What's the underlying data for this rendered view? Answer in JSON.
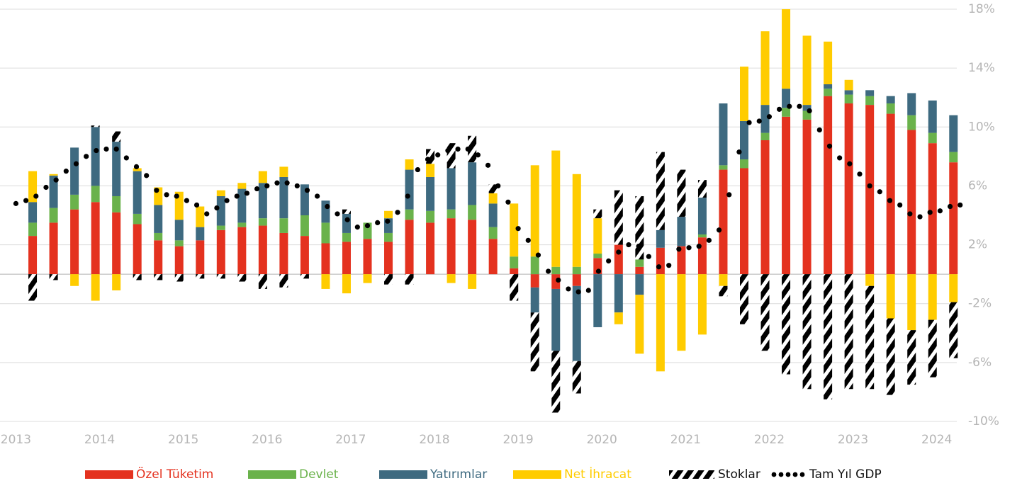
{
  "chart_data": {
    "type": "bar",
    "stacked": true,
    "xlim": [
      2012.81,
      2024.24
    ],
    "xticks": [
      2013,
      2014,
      2015,
      2016,
      2017,
      2018,
      2019,
      2020,
      2021,
      2022,
      2023,
      2024
    ],
    "ylim": [
      -10,
      18
    ],
    "yticks": [
      {
        "value": -10,
        "label": "-10%"
      },
      {
        "value": -6,
        "label": "-6%"
      },
      {
        "value": -2,
        "label": "-2%"
      },
      {
        "value": 2,
        "label": "2%"
      },
      {
        "value": 6,
        "label": "6%"
      },
      {
        "value": 10,
        "label": "10%"
      },
      {
        "value": 14,
        "label": "14%"
      },
      {
        "value": 18,
        "label": "18%"
      }
    ],
    "grid": true,
    "legend": "bottom",
    "x": [
      2013.2,
      2013.45,
      2013.7,
      2013.95,
      2014.2,
      2014.45,
      2014.7,
      2014.95,
      2015.2,
      2015.45,
      2015.7,
      2015.95,
      2016.2,
      2016.45,
      2016.7,
      2016.95,
      2017.2,
      2017.45,
      2017.7,
      2017.95,
      2018.2,
      2018.45,
      2018.7,
      2018.95,
      2019.2,
      2019.45,
      2019.7,
      2019.95,
      2020.2,
      2020.45,
      2020.7,
      2020.95,
      2021.2,
      2021.45,
      2021.7,
      2021.95,
      2022.2,
      2022.45,
      2022.7,
      2022.95,
      2023.2,
      2023.45,
      2023.7,
      2023.95,
      2024.2
    ],
    "series": [
      {
        "name": "Özel Tüketim",
        "color": "#e4321f",
        "values": [
          2.6,
          3.5,
          4.4,
          4.9,
          4.2,
          3.4,
          2.3,
          1.9,
          2.3,
          3.0,
          3.2,
          3.3,
          2.8,
          2.6,
          2.1,
          2.2,
          2.4,
          2.2,
          3.7,
          3.5,
          3.8,
          3.7,
          2.4,
          0.4,
          -0.9,
          -1.0,
          -0.8,
          1.1,
          2.0,
          0.5,
          1.8,
          1.9,
          2.5,
          7.1,
          7.2,
          9.1,
          10.7,
          10.5,
          12.1,
          11.6,
          11.5,
          10.9,
          9.8,
          8.9,
          7.6
        ]
      },
      {
        "name": "Devlet",
        "color": "#6ab24b",
        "values": [
          0.9,
          1.0,
          1.0,
          1.1,
          1.1,
          0.7,
          0.5,
          0.4,
          0,
          0.3,
          0.3,
          0.5,
          1.0,
          1.4,
          1.4,
          0.6,
          1.1,
          0.6,
          0.7,
          0.8,
          0.6,
          1.0,
          0.8,
          0.8,
          1.2,
          0.5,
          0.5,
          0.3,
          0,
          0.5,
          0,
          0,
          0.2,
          0.3,
          0.6,
          0.5,
          0.6,
          0.6,
          0.5,
          0.6,
          0.6,
          0.7,
          1.0,
          0.7,
          0.7
        ]
      },
      {
        "name": "Yatırımlar",
        "color": "#3e6a80",
        "values": [
          1.4,
          2.2,
          3.2,
          4.0,
          3.7,
          2.9,
          1.9,
          1.4,
          0.9,
          2.0,
          2.3,
          2.4,
          2.8,
          2.1,
          1.5,
          1.3,
          0,
          1.0,
          2.7,
          2.3,
          2.8,
          2.9,
          1.6,
          0,
          -1.7,
          -4.2,
          -5.1,
          -3.6,
          -2.6,
          -1.4,
          1.2,
          2.0,
          2.5,
          4.2,
          2.6,
          1.9,
          1.3,
          0.4,
          0.3,
          0.3,
          0.4,
          0.5,
          1.5,
          2.2,
          2.5
        ]
      },
      {
        "name": "Net İhracat",
        "color": "#ffcc00",
        "values": [
          2.1,
          0.1,
          -0.8,
          -1.8,
          -1.1,
          0.2,
          1.2,
          1.9,
          1.4,
          0.4,
          0.4,
          0.8,
          0.7,
          0,
          -1.0,
          -1.3,
          -0.6,
          0.5,
          0.7,
          0.9,
          -0.6,
          -1.0,
          0.7,
          3.6,
          6.2,
          7.9,
          6.3,
          2.4,
          -0.8,
          -4.0,
          -6.6,
          -5.2,
          -4.1,
          -0.8,
          3.7,
          5.0,
          5.4,
          4.7,
          2.9,
          0.7,
          -0.8,
          -3.0,
          -3.8,
          -3.1,
          -1.9
        ]
      },
      {
        "name": "Stoklar",
        "color": "#000000",
        "pattern": "hatch",
        "values": [
          -1.8,
          -0.4,
          0,
          0.1,
          0.7,
          -0.4,
          -0.4,
          -0.5,
          -0.3,
          -0.3,
          -0.5,
          -1.0,
          -0.9,
          -0.3,
          0,
          0.3,
          0,
          -0.7,
          -0.7,
          1.0,
          1.7,
          1.8,
          0.6,
          -1.8,
          -4.0,
          -4.2,
          -2.2,
          0.6,
          3.7,
          4.3,
          5.3,
          3.2,
          1.2,
          -0.7,
          -3.4,
          -5.2,
          -6.8,
          -7.8,
          -8.5,
          -7.8,
          -7.0,
          -5.2,
          -3.7,
          -3.9,
          -3.8
        ]
      }
    ],
    "line": {
      "type": "scatter",
      "name": "Tam Yıl GDP",
      "color": "#000000",
      "x": [
        2013,
        2013.12,
        2013.24,
        2013.36,
        2013.48,
        2013.6,
        2013.72,
        2013.84,
        2013.96,
        2014.08,
        2014.2,
        2014.32,
        2014.44,
        2014.56,
        2014.68,
        2014.8,
        2014.92,
        2015.04,
        2015.16,
        2015.28,
        2015.4,
        2015.52,
        2015.64,
        2015.76,
        2015.88,
        2016,
        2016.12,
        2016.24,
        2016.36,
        2016.48,
        2016.6,
        2016.72,
        2016.84,
        2016.96,
        2017.08,
        2017.2,
        2017.32,
        2017.44,
        2017.56,
        2017.68,
        2017.8,
        2017.92,
        2018.04,
        2018.16,
        2018.28,
        2018.4,
        2018.52,
        2018.64,
        2018.76,
        2018.88,
        2019,
        2019.12,
        2019.24,
        2019.36,
        2019.48,
        2019.6,
        2019.72,
        2019.84,
        2019.96,
        2020.08,
        2020.2,
        2020.32,
        2020.44,
        2020.56,
        2020.68,
        2020.8,
        2020.92,
        2021.04,
        2021.16,
        2021.28,
        2021.4,
        2021.52,
        2021.64,
        2021.76,
        2021.88,
        2022,
        2022.12,
        2022.24,
        2022.36,
        2022.48,
        2022.6,
        2022.72,
        2022.84,
        2022.96,
        2023.08,
        2023.2,
        2023.32,
        2023.44,
        2023.56,
        2023.68,
        2023.8,
        2023.92,
        2024.04,
        2024.16,
        2024.28
      ],
      "values": [
        4.8,
        5.0,
        5.3,
        5.9,
        6.4,
        7.0,
        7.5,
        8.0,
        8.4,
        8.5,
        8.5,
        7.9,
        7.3,
        6.7,
        5.7,
        5.4,
        5.3,
        5.0,
        4.7,
        4.1,
        4.5,
        5.0,
        5.3,
        5.5,
        5.8,
        6.0,
        6.2,
        6.2,
        6.0,
        5.7,
        5.3,
        4.6,
        4.1,
        3.7,
        3.2,
        3.3,
        3.5,
        3.6,
        4.2,
        5.3,
        7.1,
        7.8,
        8.1,
        8.4,
        8.5,
        8.5,
        8.1,
        7.4,
        6.0,
        4.9,
        3.1,
        2.3,
        1.3,
        0.2,
        -0.4,
        -1.0,
        -1.2,
        -1.1,
        0.2,
        0.9,
        1.5,
        2.0,
        1.9,
        1.2,
        0.5,
        0.6,
        1.7,
        1.8,
        1.9,
        2.3,
        3.0,
        5.4,
        8.3,
        10.3,
        10.4,
        10.7,
        11.2,
        11.4,
        11.4,
        11.1,
        9.8,
        8.7,
        7.9,
        7.5,
        6.8,
        6.0,
        5.6,
        5.0,
        4.7,
        4.1,
        3.9,
        4.2,
        4.3,
        4.6,
        4.7
      ]
    }
  }
}
